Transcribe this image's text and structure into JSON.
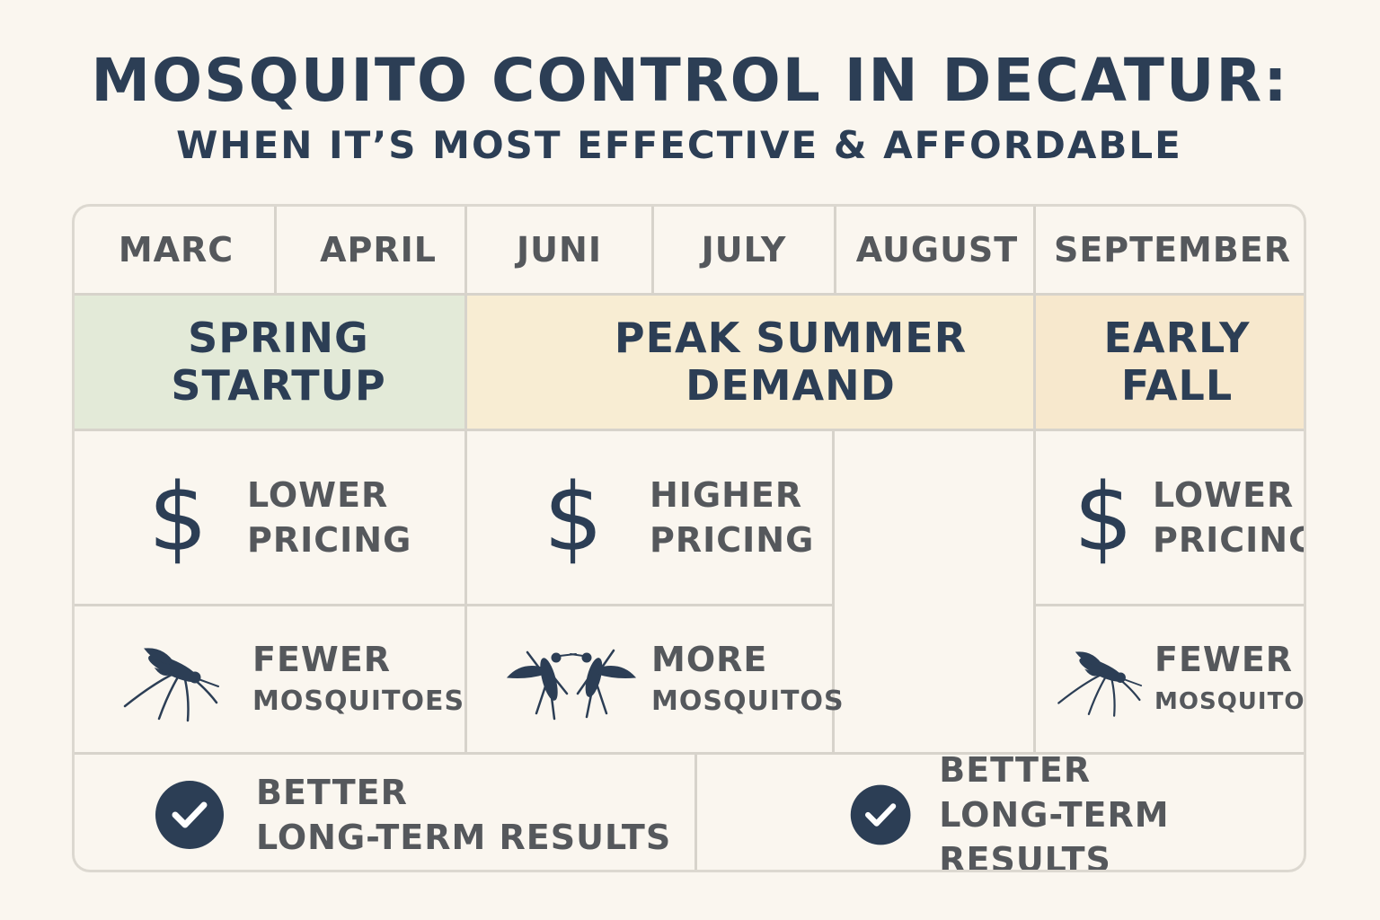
{
  "title": "MOSQUITO CONTROL IN DECATUR:",
  "subtitle": "WHEN IT’S MOST EFFECTIVE & AFFORDABLE",
  "months": [
    "MARC",
    "APRIL",
    "JUNI",
    "JULY",
    "AUGUST",
    "SEPTEMBER"
  ],
  "seasons": [
    {
      "line1": "SPRING",
      "line2": "STARTUP",
      "color": "#e3ead8"
    },
    {
      "line1": "PEAK SUMMER",
      "line2": "DEMAND",
      "color": "#f8edd3"
    },
    {
      "line1": "EARLY",
      "line2": "FALL",
      "color": "#f7e8cd"
    }
  ],
  "pricing": [
    {
      "icon": "dollar-icon",
      "symbol": "$",
      "line1": "LOWER",
      "line2": "PRICING"
    },
    {
      "icon": "dollar-icon",
      "symbol": "$",
      "line1": "HIGHER",
      "line2": "PRICING"
    },
    {
      "icon": "dollar-icon",
      "symbol": "$",
      "line1": "LOWER",
      "line2": "PRICING"
    }
  ],
  "mosquitoes": [
    {
      "icon": "mosquito-icon",
      "line1": "FEWER",
      "line2": "MOSQUITOES"
    },
    {
      "icon": "mosquitoes-pair-icon",
      "line1": "MORE",
      "line2": "MOSQUITOS"
    },
    {
      "icon": "mosquito-icon",
      "line1": "FEWER",
      "line2": "MOSQUITOES"
    }
  ],
  "results": [
    {
      "icon": "checkmark-icon",
      "line1": "BETTER",
      "line2": "LONG-TERM RESULTS"
    },
    {
      "icon": "checkmark-icon",
      "line1": "BETTER",
      "line2": "LONG-TERM RESULTS"
    }
  ],
  "colors": {
    "navy": "#2c3e55",
    "gray_text": "#55585c",
    "border": "#d7d3cb",
    "background": "#faf6ef"
  }
}
